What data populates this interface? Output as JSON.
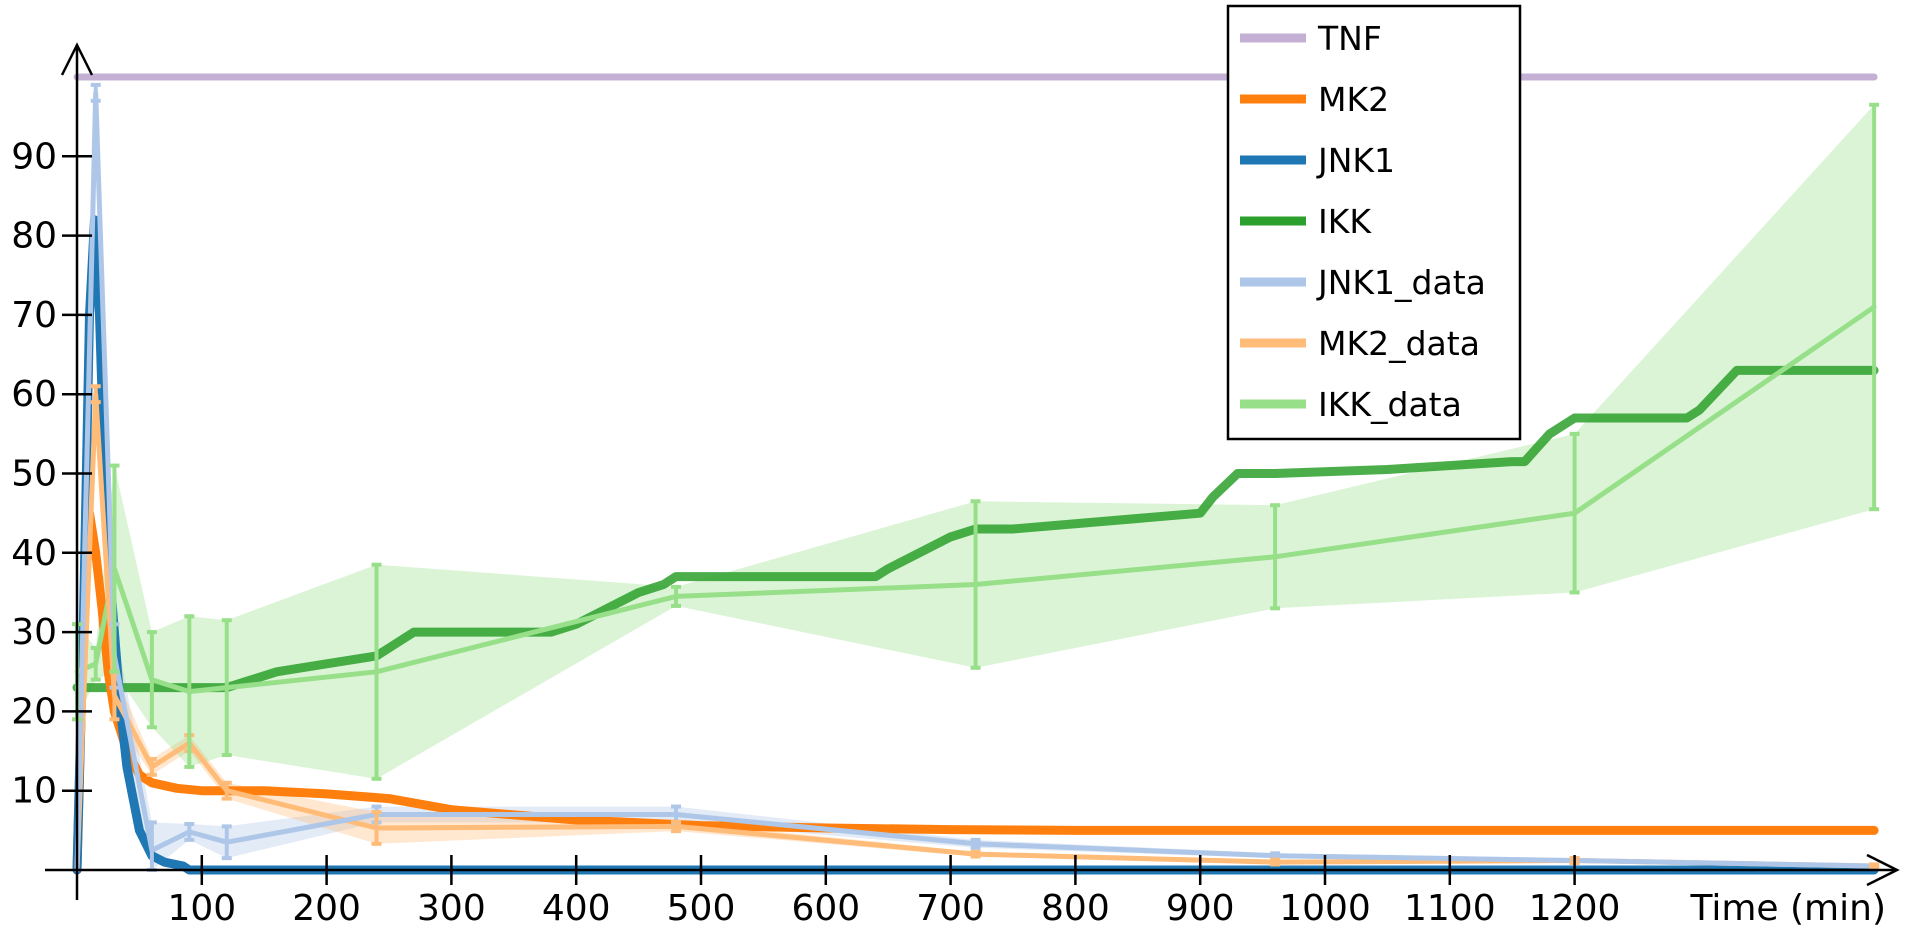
{
  "chart_data": {
    "type": "line",
    "xlabel": "Time (min)",
    "ylabel": "",
    "xlim": [
      0,
      1460
    ],
    "ylim": [
      0,
      100
    ],
    "x_ticks": [
      100,
      200,
      300,
      400,
      500,
      600,
      700,
      800,
      900,
      1000,
      1100,
      1200
    ],
    "y_ticks": [
      10,
      20,
      30,
      40,
      50,
      60,
      70,
      80,
      90
    ],
    "grid": false,
    "legend_position": "top-center",
    "series": [
      {
        "name": "TNF",
        "kind": "model",
        "color": "#c5b0d5",
        "x": [
          0,
          1440
        ],
        "y": [
          100,
          100
        ]
      },
      {
        "name": "MK2",
        "kind": "model",
        "color": "#ff7f0e",
        "x": [
          0,
          5,
          10,
          15,
          20,
          25,
          30,
          40,
          50,
          60,
          80,
          100,
          150,
          200,
          250,
          300,
          400,
          500,
          600,
          700,
          800,
          1000,
          1200,
          1440
        ],
        "y": [
          0,
          30,
          45,
          40,
          33,
          25,
          20,
          15,
          12,
          11,
          10.3,
          10,
          10,
          9.6,
          9,
          7.6,
          6.3,
          5.6,
          5.3,
          5.1,
          5,
          5,
          5,
          5
        ]
      },
      {
        "name": "JNK1",
        "kind": "model",
        "color": "#1f77b4",
        "x": [
          0,
          5,
          10,
          14,
          18,
          22,
          26,
          30,
          35,
          40,
          50,
          60,
          70,
          85,
          90,
          1440
        ],
        "y": [
          0,
          30,
          70,
          82,
          70,
          50,
          38,
          30,
          20,
          13,
          5,
          1.8,
          1,
          0.5,
          0,
          0
        ]
      },
      {
        "name": "IKK",
        "kind": "model",
        "color": "#2ca02c",
        "x": [
          0,
          10,
          20,
          30,
          60,
          80,
          120,
          140,
          160,
          200,
          240,
          250,
          260,
          270,
          300,
          350,
          380,
          400,
          450,
          470,
          480,
          640,
          650,
          700,
          720,
          750,
          900,
          910,
          930,
          960,
          1050,
          1150,
          1160,
          1180,
          1200,
          1290,
          1300,
          1330,
          1440
        ],
        "y": [
          23,
          23,
          23,
          23,
          23,
          23,
          23,
          24,
          25,
          26,
          27,
          28,
          29,
          30,
          30,
          30,
          30,
          31,
          35,
          36,
          37,
          37,
          38,
          42,
          43,
          43,
          45,
          47,
          50,
          50,
          50.5,
          51.5,
          51.5,
          55,
          57,
          57,
          58,
          63,
          63
        ]
      },
      {
        "name": "JNK1_data",
        "kind": "data",
        "color": "#aec7e8",
        "x": [
          0,
          15,
          30,
          60,
          90,
          120,
          240,
          480,
          720,
          960,
          1200,
          1440
        ],
        "y": [
          0,
          98,
          27,
          2.5,
          4.8,
          3.5,
          7,
          7,
          3.3,
          1.8,
          1.2,
          0.5
        ],
        "err": [
          0,
          1,
          4,
          3.5,
          1,
          2,
          1,
          1,
          0.5,
          0.3,
          0.3,
          0.2
        ]
      },
      {
        "name": "MK2_data",
        "kind": "data",
        "color": "#ffbb78",
        "x": [
          0,
          15,
          30,
          60,
          90,
          120,
          240,
          480,
          720,
          960,
          1200,
          1440
        ],
        "y": [
          0,
          60,
          22,
          13,
          16,
          10,
          5.3,
          5.5,
          2,
          1,
          1.2,
          0.5
        ],
        "err": [
          0,
          1,
          3,
          1,
          1,
          1,
          2,
          0.6,
          0.3,
          0.3,
          0.3,
          0.2
        ]
      },
      {
        "name": "IKK_data",
        "kind": "data",
        "color": "#98df8a",
        "x": [
          0,
          15,
          30,
          60,
          90,
          120,
          240,
          480,
          720,
          960,
          1200,
          1440
        ],
        "y": [
          25,
          26,
          38,
          24,
          22.5,
          23,
          25,
          34.5,
          36,
          39.5,
          45,
          71
        ],
        "err": [
          6,
          2,
          13,
          6,
          9.5,
          8.5,
          13.5,
          1.2,
          10.5,
          6.5,
          10,
          25.5
        ]
      }
    ]
  }
}
